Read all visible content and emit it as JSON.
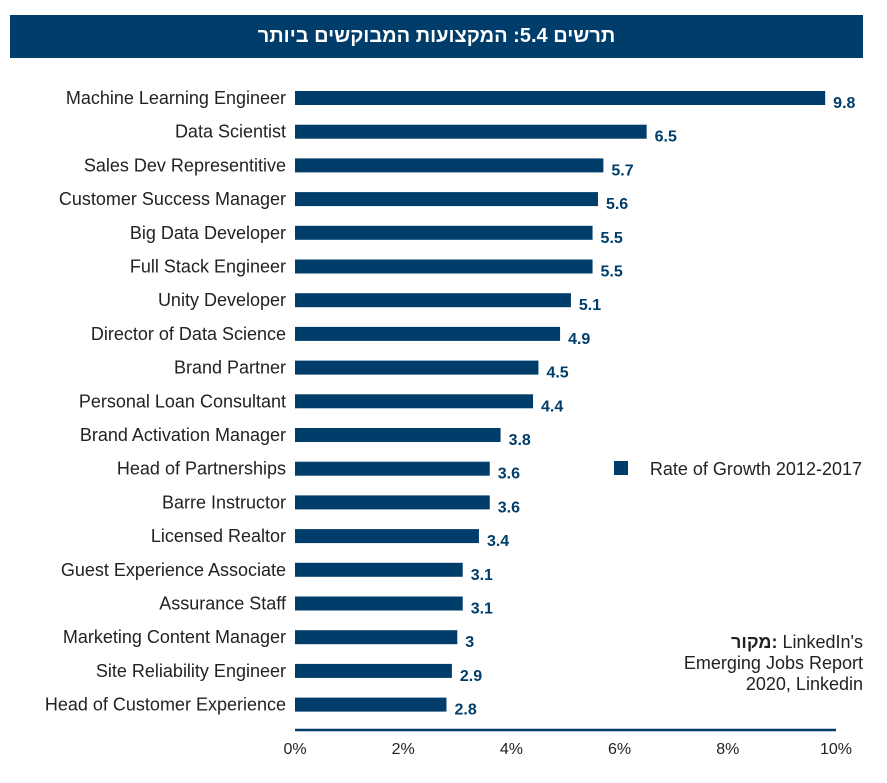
{
  "title": "תרשים 5.4: המקצועות המבוקשים ביותר",
  "source": {
    "label": "מקור:",
    "lines": [
      "LinkedIn's",
      "Emerging Jobs Report",
      "2020, Linkedin"
    ]
  },
  "colors": {
    "bar": "#003d6a",
    "banner": "#003d6a"
  },
  "chart_data": {
    "type": "bar",
    "orientation": "horizontal",
    "categories": [
      "Machine Learning Engineer",
      "Data Scientist",
      "Sales Dev Representitive",
      "Customer Success Manager",
      "Big Data Developer",
      "Full Stack Engineer",
      "Unity Developer",
      "Director of Data Science",
      "Brand Partner",
      "Personal Loan Consultant",
      "Brand Activation Manager",
      "Head of Partnerships",
      "Barre Instructor",
      "Licensed Realtor",
      "Guest Experience Associate",
      "Assurance Staff",
      "Marketing Content Manager",
      "Site Reliability Engineer",
      "Head of Customer Experience"
    ],
    "series": [
      {
        "name": "Rate of Growth 2012-2017",
        "values": [
          9.8,
          6.5,
          5.7,
          5.6,
          5.5,
          5.5,
          5.1,
          4.9,
          4.5,
          4.4,
          3.8,
          3.6,
          3.6,
          3.4,
          3.1,
          3.1,
          3,
          2.9,
          2.8
        ]
      }
    ],
    "value_labels": [
      "9.8",
      "6.5",
      "5.7",
      "5.6",
      "5.5",
      "5.5",
      "5.1",
      "4.9",
      "4.5",
      "4.4",
      "3.8",
      "3.6",
      "3.6",
      "3.4",
      "3.1",
      "3.1",
      "3",
      "2.9",
      "2.8"
    ],
    "xlim": [
      0,
      10
    ],
    "xticks": [
      "0%",
      "2%",
      "4%",
      "6%",
      "8%",
      "10%"
    ],
    "legend_position": "right-middle",
    "grid": false
  }
}
